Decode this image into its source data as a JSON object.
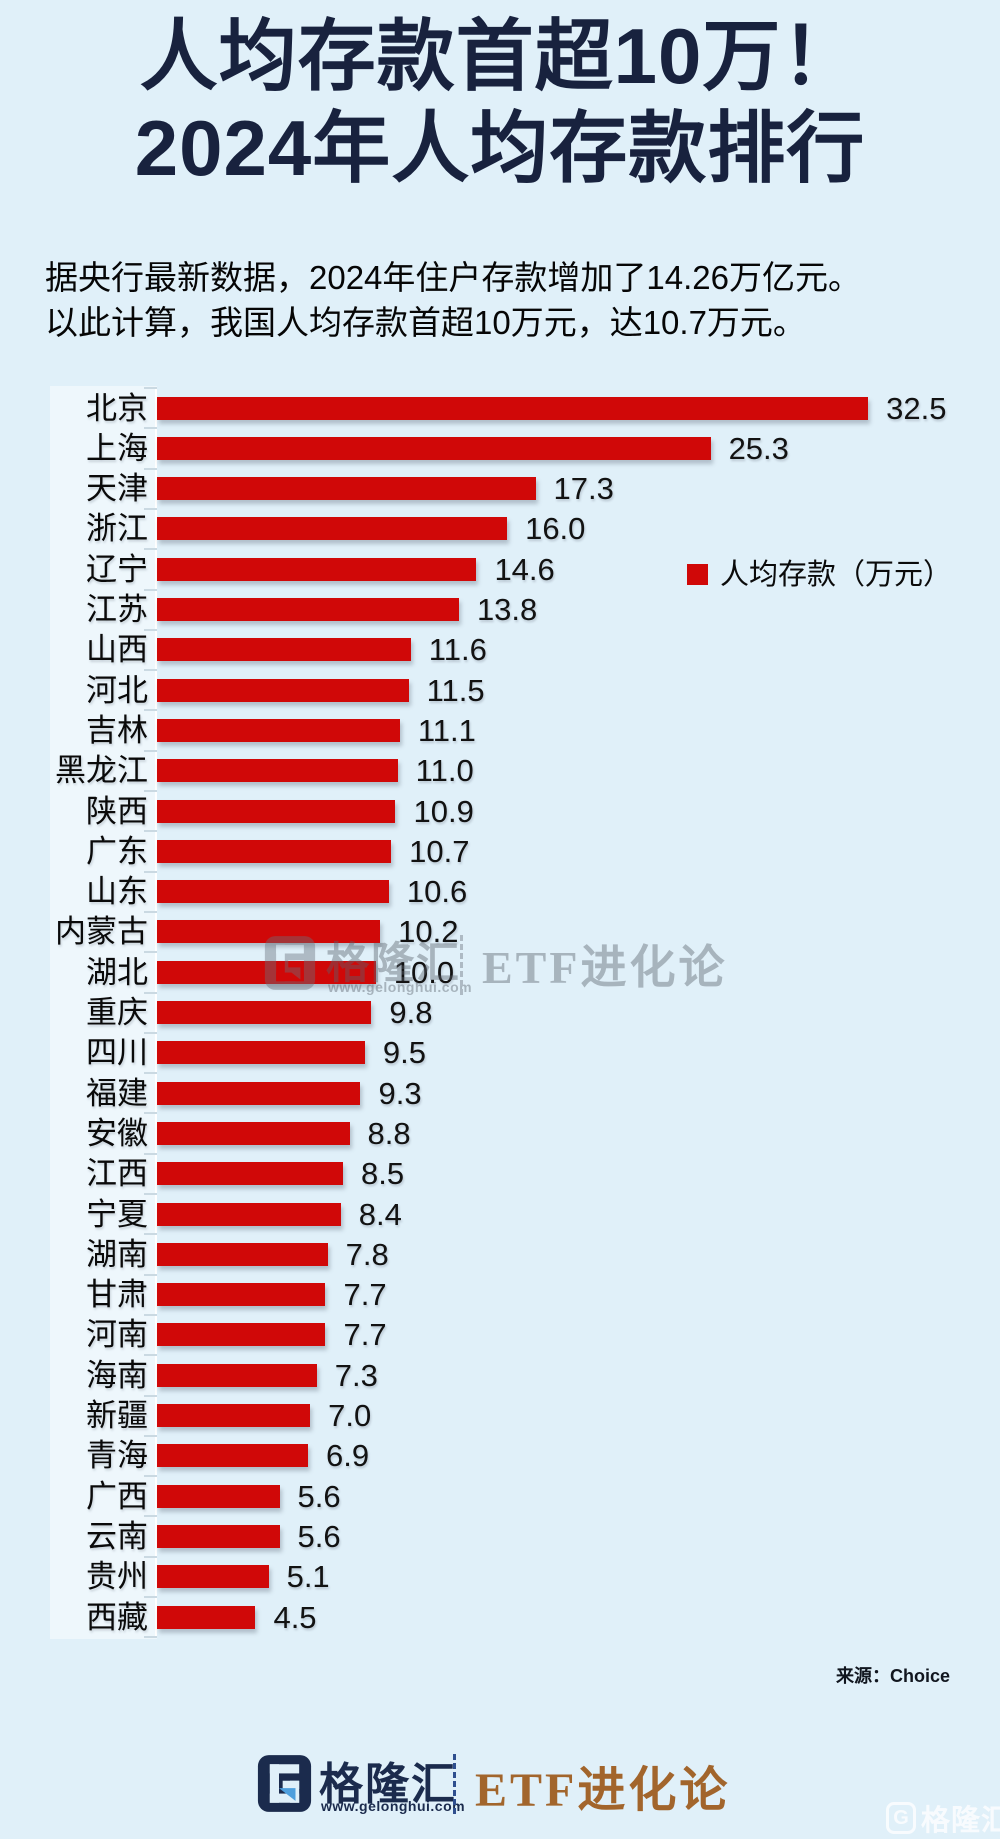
{
  "title": {
    "line1": "人均存款首超10万！",
    "line2": "2024年人均存款排行"
  },
  "intro": {
    "line1": "据央行最新数据，2024年住户存款增加了14.26万亿元。",
    "line2": "以此计算，我国人均存款首超10万元，达10.7万元。"
  },
  "legend": {
    "label": "人均存款（万元）",
    "swatch_color": "#D00808"
  },
  "source": {
    "label": "来源：Choice"
  },
  "footer": {
    "brand": "格隆汇",
    "url": "www.gelonghui.com",
    "partner": "ETF进化论"
  },
  "watermark_center": {
    "brand": "格隆汇",
    "url": "www.gelonghui.com",
    "partner": "ETF进化论"
  },
  "corner_watermark": {
    "logo_letter": "G",
    "brand": "格隆汇"
  },
  "colors": {
    "background": "#E0F0F9",
    "bar": "#D00808",
    "title": "#18223E",
    "logo_navy": "#1B2B4D",
    "logo_blue": "#4E9FDD",
    "footer_partner": "#A2652C"
  },
  "chart_data": {
    "type": "bar",
    "orientation": "horizontal",
    "title": "2024年人均存款排行",
    "series_label": "人均存款（万元）",
    "unit": "万元",
    "categories": [
      "北京",
      "上海",
      "天津",
      "浙江",
      "辽宁",
      "江苏",
      "山西",
      "河北",
      "吉林",
      "黑龙江",
      "陕西",
      "广东",
      "山东",
      "内蒙古",
      "湖北",
      "重庆",
      "四川",
      "福建",
      "安徽",
      "江西",
      "宁夏",
      "湖南",
      "甘肃",
      "河南",
      "海南",
      "新疆",
      "青海",
      "广西",
      "云南",
      "贵州",
      "西藏"
    ],
    "values": [
      32.5,
      25.3,
      17.3,
      16.0,
      14.6,
      13.8,
      11.6,
      11.5,
      11.1,
      11.0,
      10.9,
      10.7,
      10.6,
      10.2,
      10.0,
      9.8,
      9.5,
      9.3,
      8.8,
      8.5,
      8.4,
      7.8,
      7.7,
      7.7,
      7.3,
      7.0,
      6.9,
      5.6,
      5.6,
      5.1,
      4.5
    ],
    "xlim": [
      0,
      34.5
    ],
    "value_labels_shown": true,
    "grid": false,
    "legend_position": "right-upper"
  }
}
